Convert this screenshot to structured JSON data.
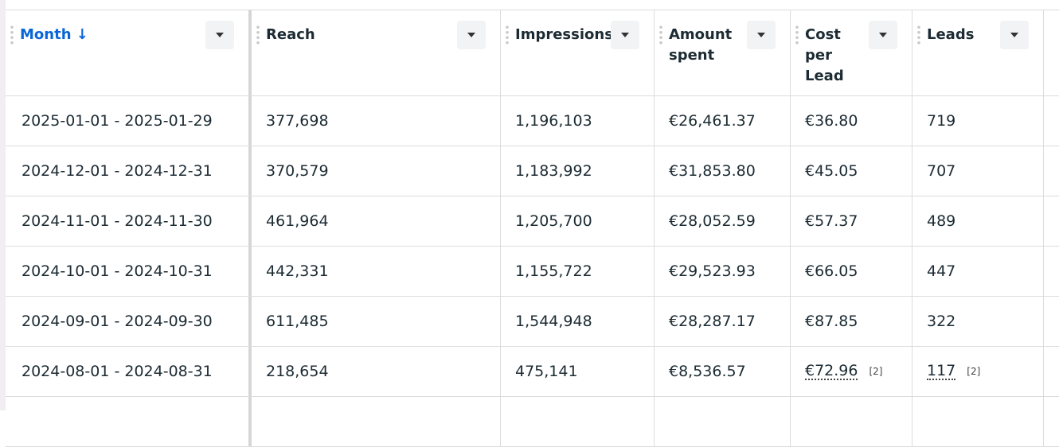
{
  "columns": [
    {
      "label": "Month",
      "sort": "↓"
    },
    {
      "label": "Reach"
    },
    {
      "label": "Impressions"
    },
    {
      "label": "Amount spent"
    },
    {
      "label": "Cost per Lead"
    },
    {
      "label": "Leads"
    }
  ],
  "rows": [
    [
      "2025-01-01 - 2025-01-29",
      "377,698",
      "1,196,103",
      "€26,461.37",
      "€36.80",
      "719"
    ],
    [
      "2024-12-01 - 2024-12-31",
      "370,579",
      "1,183,992",
      "€31,853.80",
      "€45.05",
      "707"
    ],
    [
      "2024-11-01 - 2024-11-30",
      "461,964",
      "1,205,700",
      "€28,052.59",
      "€57.37",
      "489"
    ],
    [
      "2024-10-01 - 2024-10-31",
      "442,331",
      "1,155,722",
      "€29,523.93",
      "€66.05",
      "447"
    ],
    [
      "2024-09-01 - 2024-09-30",
      "611,485",
      "1,544,948",
      "€28,287.17",
      "€87.85",
      "322"
    ],
    [
      "2024-08-01 - 2024-08-31",
      "218,654",
      "475,141",
      "€8,536.57",
      "€72.96",
      "117"
    ]
  ],
  "footnote": "[2]"
}
